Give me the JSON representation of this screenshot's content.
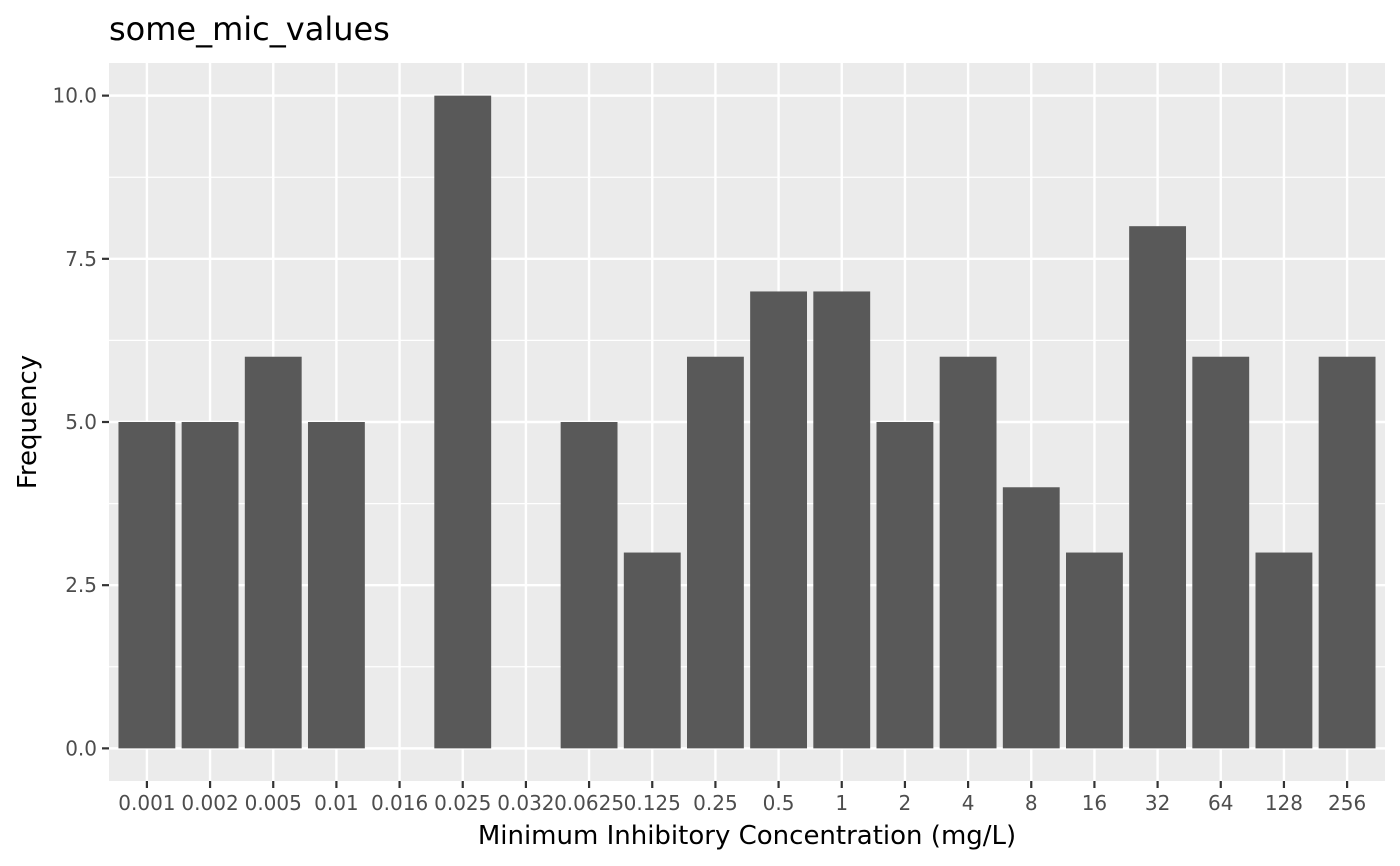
{
  "chart_data": {
    "type": "bar",
    "title": "some_mic_values",
    "xlabel": "Minimum Inhibitory Concentration (mg/L)",
    "ylabel": "Frequency",
    "categories": [
      "0.001",
      "0.002",
      "0.005",
      "0.01",
      "0.016",
      "0.025",
      "0.032",
      "0.0625",
      "0.125",
      "0.25",
      "0.5",
      "1",
      "2",
      "4",
      "8",
      "16",
      "32",
      "64",
      "128",
      "256"
    ],
    "values": [
      5,
      5,
      6,
      5,
      0,
      10,
      0,
      5,
      3,
      6,
      7,
      7,
      5,
      6,
      4,
      3,
      8,
      6,
      3,
      6
    ],
    "yticks": [
      "0.0",
      "2.5",
      "5.0",
      "7.5",
      "10.0"
    ],
    "ylim": [
      -0.5,
      10.5
    ],
    "grid": true,
    "colors": {
      "bar": "#595959",
      "panel": "#ebebeb",
      "grid": "#ffffff"
    }
  }
}
